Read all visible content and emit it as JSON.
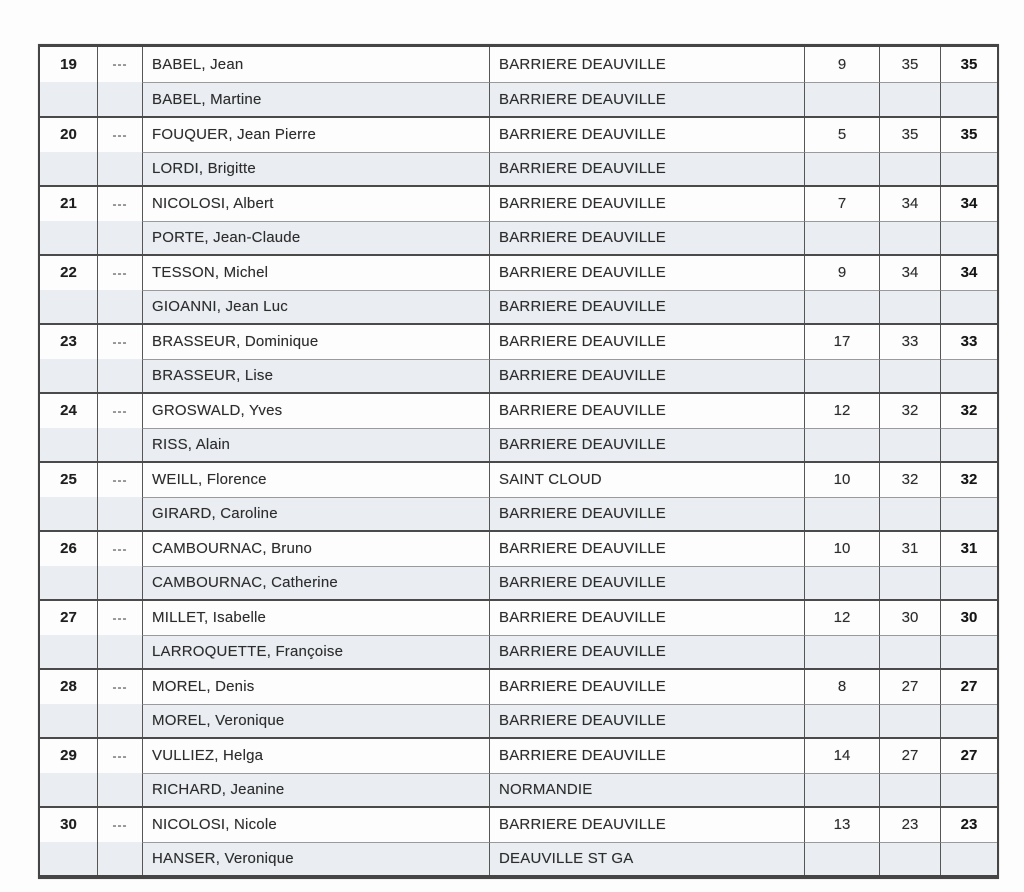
{
  "document": {
    "kind": "scanned-results-list",
    "dash_marker": "---",
    "club_abbrev_note": "",
    "colors": {
      "row_tint": "#eaeef2",
      "border_dark": "#454545",
      "border_thin": "#9a9a9a",
      "text": "#2d2d2d"
    }
  },
  "table": {
    "rows": [
      {
        "rank": "19",
        "dash": "---",
        "players": [
          {
            "name": "BABEL, Jean",
            "club": "BARRIERE DEAUVILLE"
          },
          {
            "name": "BABEL, Martine",
            "club": "BARRIERE DEAUVILLE"
          }
        ],
        "score1": "9",
        "score2": "35",
        "total": "35"
      },
      {
        "rank": "20",
        "dash": "---",
        "players": [
          {
            "name": "FOUQUER, Jean Pierre",
            "club": "BARRIERE DEAUVILLE"
          },
          {
            "name": "LORDI, Brigitte",
            "club": "BARRIERE DEAUVILLE"
          }
        ],
        "score1": "5",
        "score2": "35",
        "total": "35"
      },
      {
        "rank": "21",
        "dash": "---",
        "players": [
          {
            "name": "NICOLOSI, Albert",
            "club": "BARRIERE DEAUVILLE"
          },
          {
            "name": "PORTE, Jean-Claude",
            "club": "BARRIERE DEAUVILLE"
          }
        ],
        "score1": "7",
        "score2": "34",
        "total": "34"
      },
      {
        "rank": "22",
        "dash": "---",
        "players": [
          {
            "name": "TESSON, Michel",
            "club": "BARRIERE DEAUVILLE"
          },
          {
            "name": "GIOANNI, Jean Luc",
            "club": "BARRIERE DEAUVILLE"
          }
        ],
        "score1": "9",
        "score2": "34",
        "total": "34"
      },
      {
        "rank": "23",
        "dash": "---",
        "players": [
          {
            "name": "BRASSEUR, Dominique",
            "club": "BARRIERE DEAUVILLE"
          },
          {
            "name": "BRASSEUR, Lise",
            "club": "BARRIERE DEAUVILLE"
          }
        ],
        "score1": "17",
        "score2": "33",
        "total": "33"
      },
      {
        "rank": "24",
        "dash": "---",
        "players": [
          {
            "name": "GROSWALD, Yves",
            "club": "BARRIERE DEAUVILLE"
          },
          {
            "name": "RISS, Alain",
            "club": "BARRIERE DEAUVILLE"
          }
        ],
        "score1": "12",
        "score2": "32",
        "total": "32"
      },
      {
        "rank": "25",
        "dash": "---",
        "players": [
          {
            "name": "WEILL, Florence",
            "club": "SAINT CLOUD"
          },
          {
            "name": "GIRARD, Caroline",
            "club": "BARRIERE DEAUVILLE"
          }
        ],
        "score1": "10",
        "score2": "32",
        "total": "32"
      },
      {
        "rank": "26",
        "dash": "---",
        "players": [
          {
            "name": "CAMBOURNAC, Bruno",
            "club": "BARRIERE DEAUVILLE"
          },
          {
            "name": "CAMBOURNAC, Catherine",
            "club": "BARRIERE DEAUVILLE"
          }
        ],
        "score1": "10",
        "score2": "31",
        "total": "31"
      },
      {
        "rank": "27",
        "dash": "---",
        "players": [
          {
            "name": "MILLET, Isabelle",
            "club": "BARRIERE DEAUVILLE"
          },
          {
            "name": "LARROQUETTE, Françoise",
            "club": "BARRIERE DEAUVILLE"
          }
        ],
        "score1": "12",
        "score2": "30",
        "total": "30"
      },
      {
        "rank": "28",
        "dash": "---",
        "players": [
          {
            "name": "MOREL, Denis",
            "club": "BARRIERE DEAUVILLE"
          },
          {
            "name": "MOREL, Veronique",
            "club": "BARRIERE DEAUVILLE"
          }
        ],
        "score1": "8",
        "score2": "27",
        "total": "27"
      },
      {
        "rank": "29",
        "dash": "---",
        "players": [
          {
            "name": "VULLIEZ, Helga",
            "club": "BARRIERE DEAUVILLE"
          },
          {
            "name": "RICHARD, Jeanine",
            "club": "NORMANDIE"
          }
        ],
        "score1": "14",
        "score2": "27",
        "total": "27"
      },
      {
        "rank": "30",
        "dash": "---",
        "players": [
          {
            "name": "NICOLOSI, Nicole",
            "club": "BARRIERE DEAUVILLE"
          },
          {
            "name": "HANSER, Veronique",
            "club": "DEAUVILLE ST GA"
          }
        ],
        "score1": "13",
        "score2": "23",
        "total": "23"
      }
    ]
  }
}
